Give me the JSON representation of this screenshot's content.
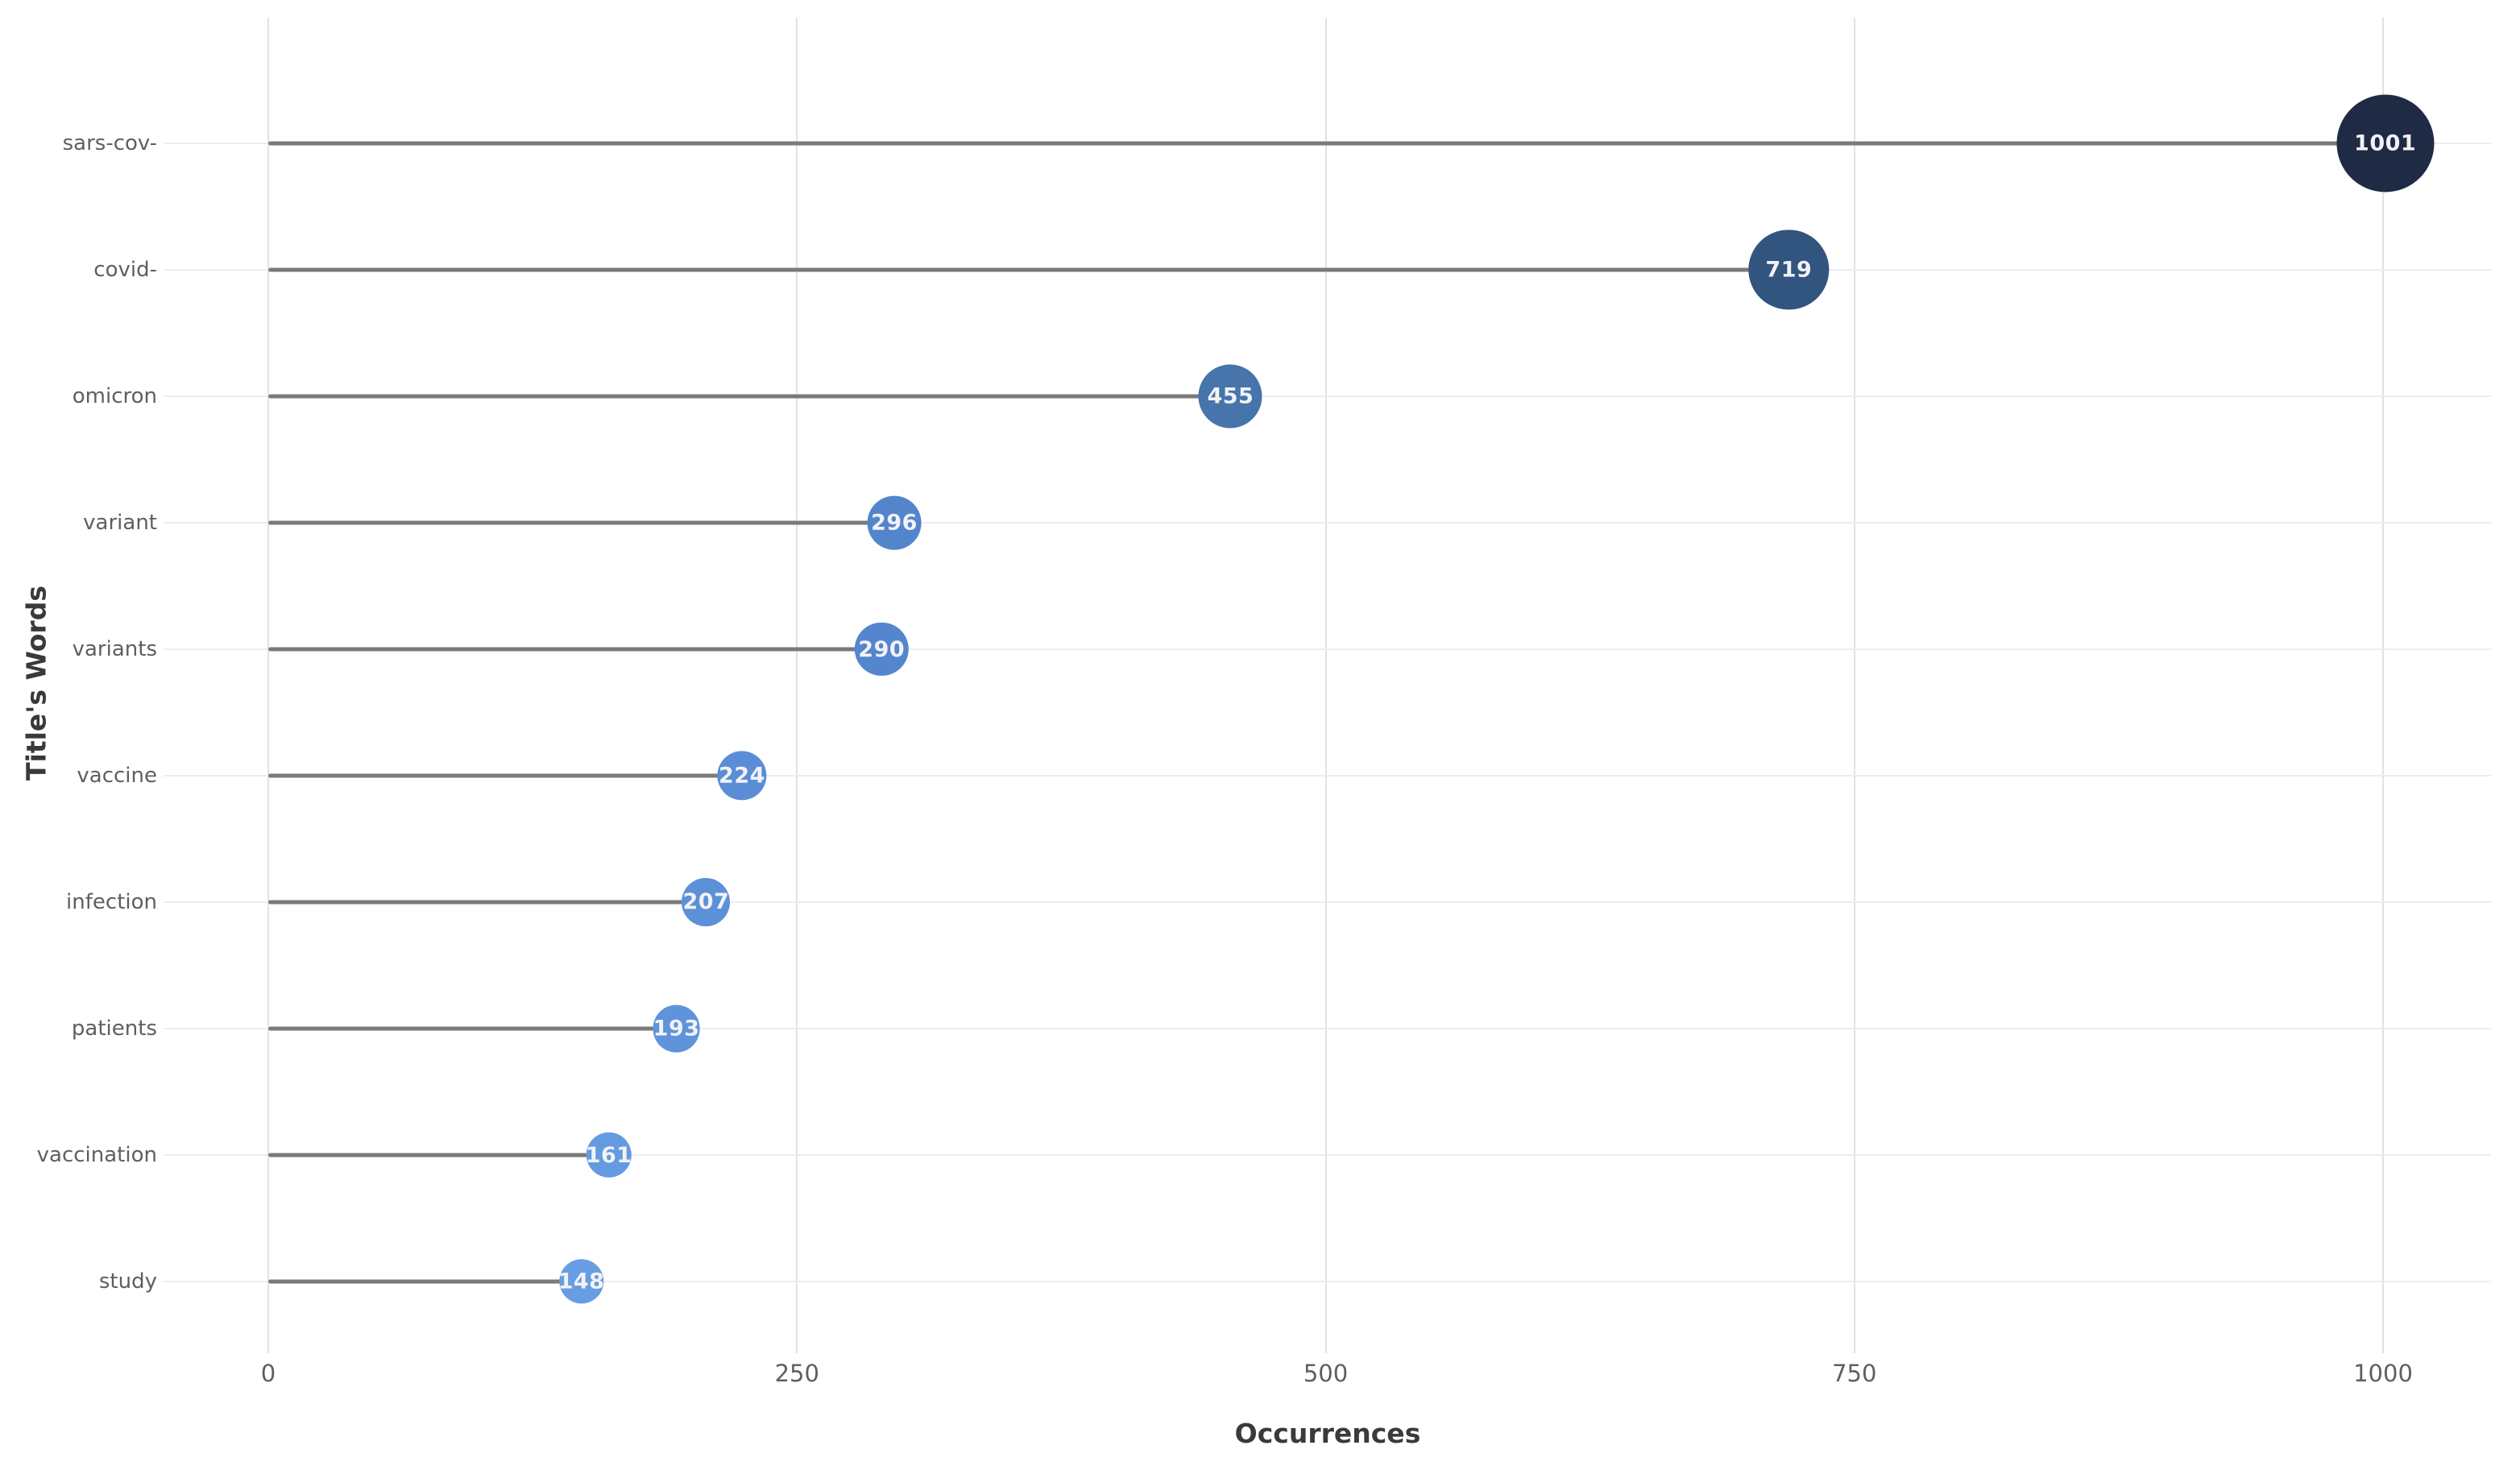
{
  "page": {
    "background": "#ffffff"
  },
  "chart_data": {
    "type": "bar",
    "variant": "horizontal-lollipop",
    "title": "",
    "xlabel": "Occurrences",
    "ylabel": "Title's Words",
    "categories": [
      "sars-cov-",
      "covid-",
      "omicron",
      "variant",
      "variants",
      "vaccine",
      "infection",
      "patients",
      "vaccination",
      "study"
    ],
    "values": [
      1001,
      719,
      455,
      296,
      290,
      224,
      207,
      193,
      161,
      148
    ],
    "marker_colors": [
      "#1f2b45",
      "#31557e",
      "#4674ab",
      "#5385cc",
      "#5486ce",
      "#5a8dd6",
      "#5c90d9",
      "#5f93dc",
      "#649adf",
      "#679de2"
    ],
    "marker_value_text_color": "#f2f2f6",
    "stem_color": "#7a7a7a",
    "x_ticks": [
      0,
      250,
      500,
      750,
      1000
    ],
    "xlim": [
      -50,
      1052
    ],
    "grid": true,
    "gridline_color_vertical": "#e2e2e2",
    "gridline_color_horizontal": "#ededed",
    "tick_label_color": "#5f5f5f",
    "axis_title_color": "#3a3a3a",
    "legend": "none"
  }
}
